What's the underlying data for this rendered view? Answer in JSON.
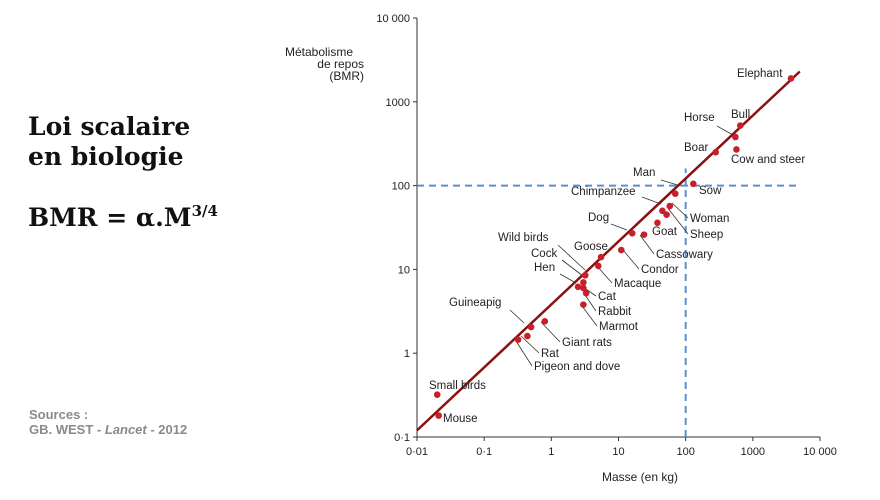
{
  "slide": {
    "title_lines": [
      "Loi scalaire",
      "en biologie"
    ],
    "formula": {
      "main": "BMR = α.M",
      "exponent": "3/4"
    },
    "sources": {
      "label": "Sources :",
      "author": "GB. WEST - ",
      "journal": "Lancet",
      "year": " - 2012"
    }
  },
  "chart_data": {
    "type": "scatter",
    "xlabel": "Masse (en kg)",
    "ylabel_lines": [
      "Métabolisme",
      "de repos",
      "(BMR)"
    ],
    "xscale": "log",
    "yscale": "log",
    "xlim": [
      0.01,
      10000
    ],
    "ylim": [
      0.1,
      10000
    ],
    "x_ticks": [
      0.01,
      0.1,
      1,
      10,
      100,
      1000,
      10000
    ],
    "x_tick_labels": [
      "0·01",
      "0·1",
      "1",
      "10",
      "100",
      "1000",
      "10 000"
    ],
    "y_ticks": [
      0.1,
      1,
      10,
      100,
      1000,
      10000
    ],
    "y_tick_labels": [
      "0·1",
      "1",
      "10",
      "100",
      "1000",
      "10 000"
    ],
    "grid": false,
    "colors": {
      "points": "#c8202a",
      "fit_line": "#8b1010",
      "reference_lines": "#5b8fd0"
    },
    "fit_line": {
      "x": [
        0.01,
        5000
      ],
      "y": [
        0.12,
        2300
      ]
    },
    "reference_lines": {
      "x": 100,
      "y": 100
    },
    "points": [
      {
        "label": "Elephant",
        "x": 3700,
        "y": 1900
      },
      {
        "label": "Bull",
        "x": 650,
        "y": 520
      },
      {
        "label": "Horse",
        "x": 550,
        "y": 380
      },
      {
        "label": "Boar",
        "x": 280,
        "y": 250
      },
      {
        "label": "Cow and steer",
        "x": 570,
        "y": 270
      },
      {
        "label": "Man",
        "x": 70,
        "y": 80
      },
      {
        "label": "Sow",
        "x": 130,
        "y": 105
      },
      {
        "label": "Chimpanzee",
        "x": 45,
        "y": 50
      },
      {
        "label": "Woman",
        "x": 58,
        "y": 57
      },
      {
        "label": "Sheep",
        "x": 52,
        "y": 45
      },
      {
        "label": "Dog",
        "x": 16,
        "y": 27
      },
      {
        "label": "Goat",
        "x": 38,
        "y": 36
      },
      {
        "label": "Cassowary",
        "x": 24,
        "y": 26
      },
      {
        "label": "Wild birds",
        "x": 3.2,
        "y": 8.5
      },
      {
        "label": "Goose",
        "x": 5.5,
        "y": 14
      },
      {
        "label": "Condor",
        "x": 11,
        "y": 17
      },
      {
        "label": "Cock",
        "x": 3.0,
        "y": 7
      },
      {
        "label": "Hen",
        "x": 2.5,
        "y": 6.2
      },
      {
        "label": "Macaque",
        "x": 5,
        "y": 11
      },
      {
        "label": "Cat",
        "x": 3,
        "y": 6
      },
      {
        "label": "Rabbit",
        "x": 3.3,
        "y": 5.2
      },
      {
        "label": "Marmot",
        "x": 3,
        "y": 3.8
      },
      {
        "label": "Guineapig",
        "x": 0.5,
        "y": 2.05
      },
      {
        "label": "Giant rats",
        "x": 0.8,
        "y": 2.4
      },
      {
        "label": "Rat",
        "x": 0.44,
        "y": 1.6
      },
      {
        "label": "Pigeon and dove",
        "x": 0.32,
        "y": 1.45
      },
      {
        "label": "Small birds",
        "x": 0.02,
        "y": 0.32
      },
      {
        "label": "Mouse",
        "x": 0.021,
        "y": 0.18
      }
    ]
  }
}
